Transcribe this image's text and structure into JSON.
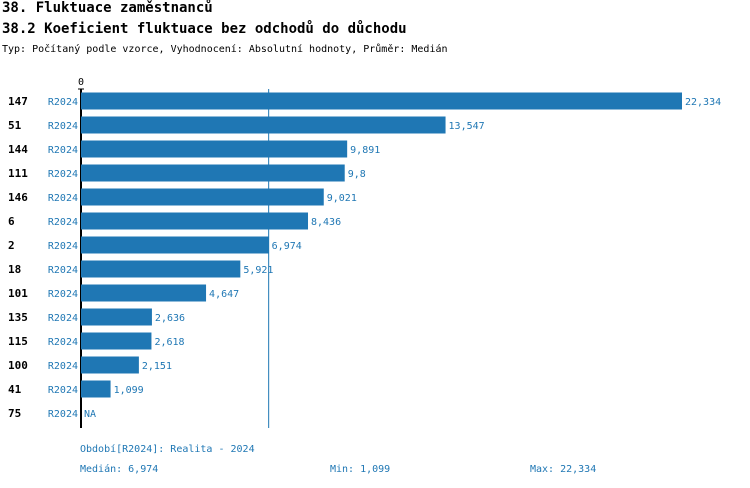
{
  "header": {
    "title": "38. Fluktuace zaměstnanců",
    "subtitle": "38.2 Koeficient fluktuace bez odchodů do důchodu",
    "meta": "Typ: Počítaný podle vzorce, Vyhodnocení: Absolutní hodnoty, Průměr: Medián"
  },
  "footer": {
    "period": "Období[R2024]: Realita - 2024",
    "median": "Medián: 6,974",
    "min": "Min: 1,099",
    "max": "Max: 22,334"
  },
  "colors": {
    "bar": "#1f77b4",
    "label": "#1f77b4",
    "median_line": "#1f77b4"
  },
  "chart_data": {
    "type": "bar",
    "orientation": "horizontal",
    "x_tick_labels": [
      "0"
    ],
    "xlim": [
      0,
      22.334
    ],
    "median": 6.974,
    "grid": false,
    "legend": "none",
    "rows": [
      {
        "id": "147",
        "period": "R2024",
        "value": 22.334,
        "label": "22,334"
      },
      {
        "id": "51",
        "period": "R2024",
        "value": 13.547,
        "label": "13,547"
      },
      {
        "id": "144",
        "period": "R2024",
        "value": 9.891,
        "label": "9,891"
      },
      {
        "id": "111",
        "period": "R2024",
        "value": 9.8,
        "label": "9,8"
      },
      {
        "id": "146",
        "period": "R2024",
        "value": 9.021,
        "label": "9,021"
      },
      {
        "id": "6",
        "period": "R2024",
        "value": 8.436,
        "label": "8,436"
      },
      {
        "id": "2",
        "period": "R2024",
        "value": 6.974,
        "label": "6,974"
      },
      {
        "id": "18",
        "period": "R2024",
        "value": 5.921,
        "label": "5,921"
      },
      {
        "id": "101",
        "period": "R2024",
        "value": 4.647,
        "label": "4,647"
      },
      {
        "id": "135",
        "period": "R2024",
        "value": 2.636,
        "label": "2,636"
      },
      {
        "id": "115",
        "period": "R2024",
        "value": 2.618,
        "label": "2,618"
      },
      {
        "id": "100",
        "period": "R2024",
        "value": 2.151,
        "label": "2,151"
      },
      {
        "id": "41",
        "period": "R2024",
        "value": 1.099,
        "label": "1,099"
      },
      {
        "id": "75",
        "period": "R2024",
        "value": null,
        "label": "NA"
      }
    ]
  }
}
